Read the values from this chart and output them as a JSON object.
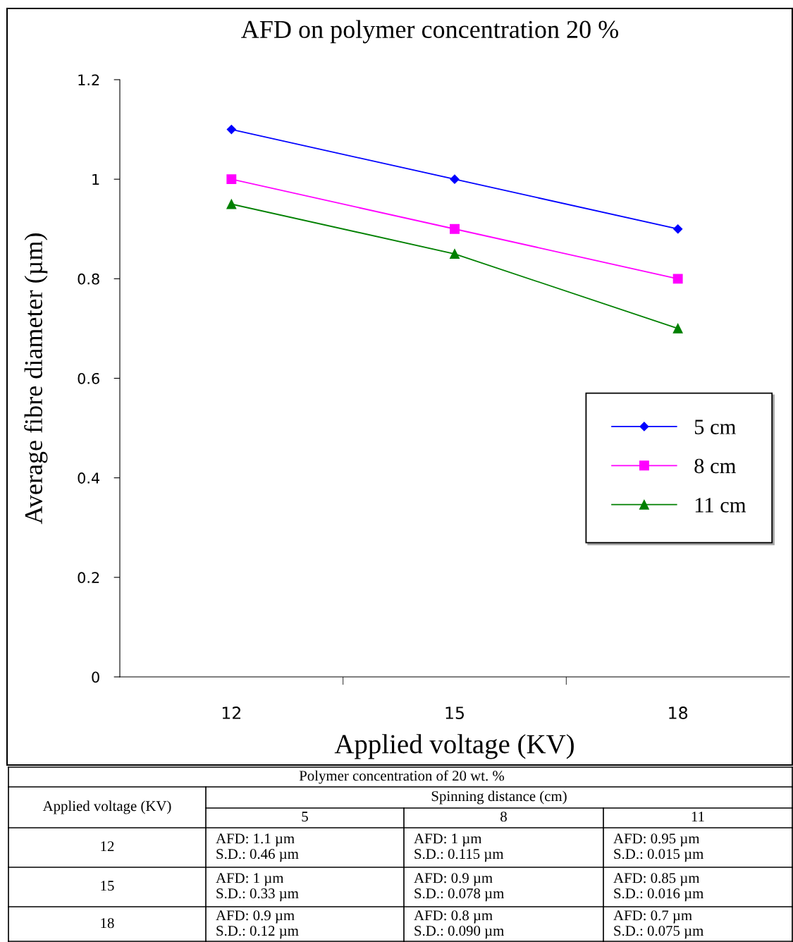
{
  "chart_data": {
    "type": "line",
    "title": "AFD on polymer concentration 20 %",
    "xlabel": "Applied voltage (KV)",
    "ylabel": "Average fibre diameter (µm)",
    "categories": [
      "12",
      "15",
      "18"
    ],
    "series": [
      {
        "name": "5 cm",
        "color": "#0000ff",
        "marker": "diamond",
        "values": [
          1.1,
          1.0,
          0.9
        ]
      },
      {
        "name": "8 cm",
        "color": "#ff00ff",
        "marker": "square",
        "values": [
          1.0,
          0.9,
          0.8
        ]
      },
      {
        "name": "11 cm",
        "color": "#008000",
        "marker": "triangle",
        "values": [
          0.95,
          0.85,
          0.7
        ]
      }
    ],
    "ylim": [
      0,
      1.2
    ],
    "yticks": [
      0,
      0.2,
      0.4,
      0.6,
      0.8,
      1,
      1.2
    ],
    "grid": false,
    "legend": "right",
    "annotations": [
      "Polymer concentration of 20 wt. %",
      "Applied voltage (KV)",
      "Spinning distance (cm)",
      "5",
      "8",
      "11",
      "12",
      "AFD: 1.1 µm\nS.D.: 0.46 µm",
      "AFD: 1 µm\nS.D.: 0.115 µm",
      "AFD: 0.95 µm\nS.D.: 0.015 µm",
      "15",
      "AFD: 1 µm\nS.D.: 0.33 µm",
      "AFD: 0.9 µm\nS.D.: 0.078 µm",
      "AFD: 0.85 µm\nS.D.: 0.016 µm",
      "18",
      "AFD: 0.9 µm\nS.D.: 0.12 µm",
      "AFD: 0.8 µm\nS.D.: 0.090 µm",
      "AFD: 0.7 µm\nS.D.: 0.075 µm"
    ]
  }
}
